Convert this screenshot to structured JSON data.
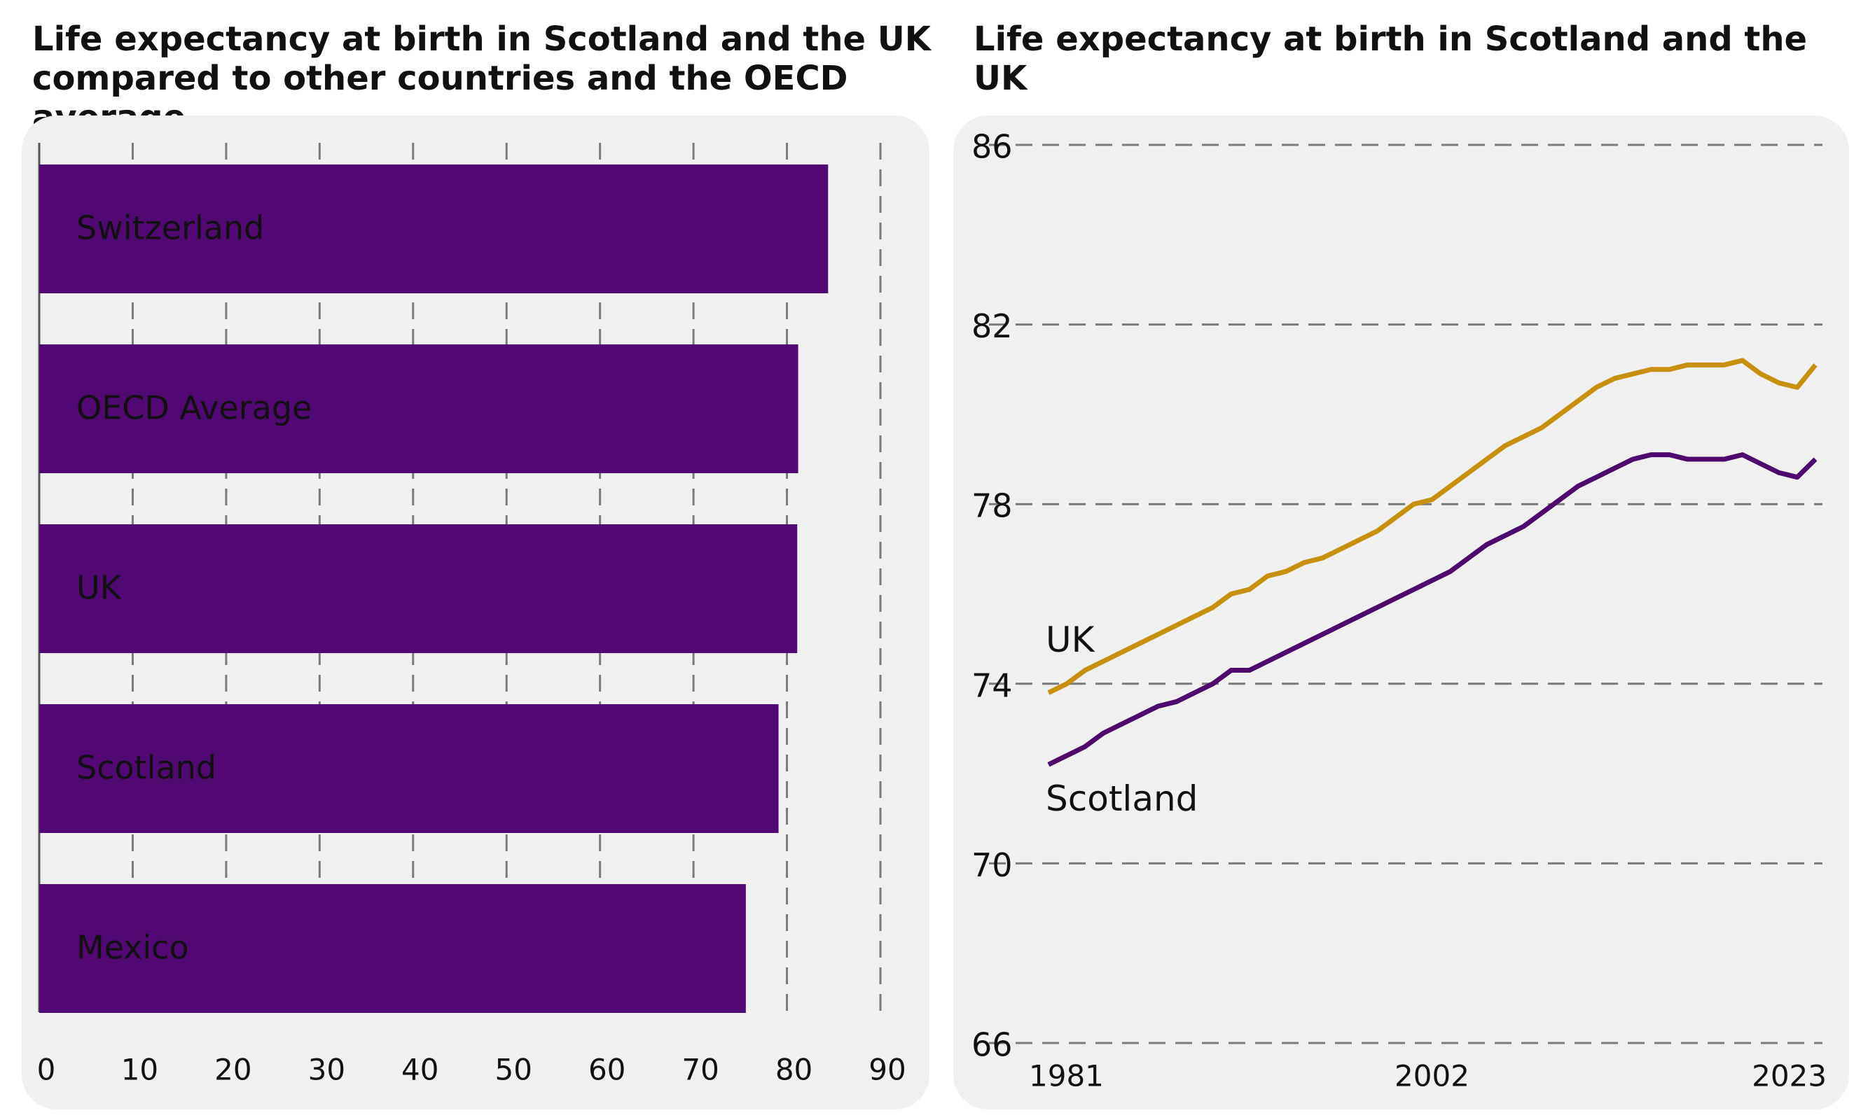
{
  "chart_data": [
    {
      "type": "bar",
      "title": "Life expectancy at birth in Scotland and the UK compared to other countries and the OECD average",
      "categories": [
        "Switzerland",
        "OECD Average",
        "UK",
        "Scotland",
        "Mexico"
      ],
      "values": [
        84.4,
        81.2,
        81.1,
        79.1,
        75.6
      ],
      "color": "#520872",
      "xlim": [
        0,
        90
      ],
      "xticks": [
        0,
        10,
        20,
        30,
        40,
        50,
        60,
        70,
        80,
        90
      ],
      "grid": true
    },
    {
      "type": "line",
      "title": "Life expectancy at birth in Scotland and the UK",
      "x": [
        1981,
        1982,
        1983,
        1984,
        1985,
        1986,
        1987,
        1988,
        1989,
        1990,
        1991,
        1992,
        1993,
        1994,
        1995,
        1996,
        1997,
        1998,
        1999,
        2000,
        2001,
        2002,
        2003,
        2004,
        2005,
        2006,
        2007,
        2008,
        2009,
        2010,
        2011,
        2012,
        2013,
        2014,
        2015,
        2016,
        2017,
        2018,
        2019,
        2020,
        2021,
        2022,
        2023
      ],
      "series": [
        {
          "name": "UK",
          "color": "#c8900e",
          "values": [
            73.8,
            74.0,
            74.3,
            74.5,
            74.7,
            74.9,
            75.1,
            75.3,
            75.5,
            75.7,
            76.0,
            76.1,
            76.4,
            76.5,
            76.7,
            76.8,
            77.0,
            77.2,
            77.4,
            77.7,
            78.0,
            78.1,
            78.4,
            78.7,
            79.0,
            79.3,
            79.5,
            79.7,
            80.0,
            80.3,
            80.6,
            80.8,
            80.9,
            81.0,
            81.0,
            81.1,
            81.1,
            81.1,
            81.2,
            80.9,
            80.7,
            80.6,
            81.1
          ]
        },
        {
          "name": "Scotland",
          "color": "#50086e",
          "values": [
            72.2,
            72.4,
            72.6,
            72.9,
            73.1,
            73.3,
            73.5,
            73.6,
            73.8,
            74.0,
            74.3,
            74.3,
            74.5,
            74.7,
            74.9,
            75.1,
            75.3,
            75.5,
            75.7,
            75.9,
            76.1,
            76.3,
            76.5,
            76.8,
            77.1,
            77.3,
            77.5,
            77.8,
            78.1,
            78.4,
            78.6,
            78.8,
            79.0,
            79.1,
            79.1,
            79.0,
            79.0,
            79.0,
            79.1,
            78.9,
            78.7,
            78.6,
            79.0
          ]
        }
      ],
      "xlim": [
        1981,
        2023
      ],
      "xticks": [
        1981,
        2002,
        2023
      ],
      "ylim": [
        66,
        86
      ],
      "yticks": [
        66,
        70,
        74,
        78,
        82,
        86
      ],
      "grid": true
    }
  ]
}
